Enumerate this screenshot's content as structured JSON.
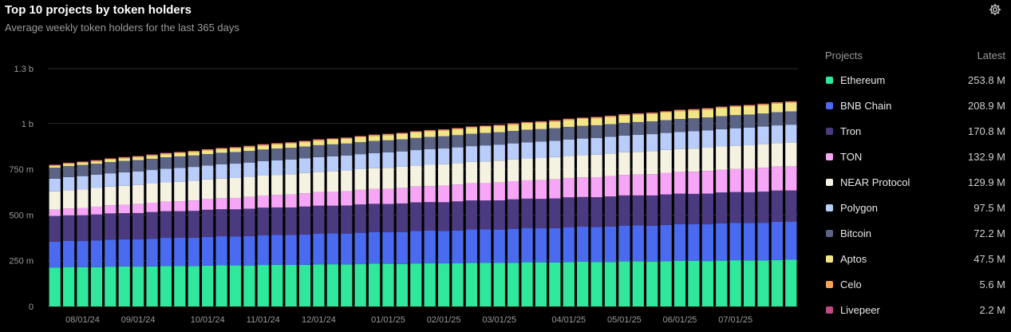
{
  "header": {
    "title": "Top 10 projects by token holders",
    "subtitle": "Average weekly token holders for the last 365 days",
    "settings_icon": "gear-icon"
  },
  "legend": {
    "col_project": "Projects",
    "col_latest": "Latest",
    "items": [
      {
        "label": "Ethereum",
        "value": "253.8 M",
        "color": "#2fe89c"
      },
      {
        "label": "BNB Chain",
        "value": "208.9 M",
        "color": "#4a6bf0"
      },
      {
        "label": "Tron",
        "value": "170.8 M",
        "color": "#4c3a80"
      },
      {
        "label": "TON",
        "value": "132.9 M",
        "color": "#f7a6f7"
      },
      {
        "label": "NEAR Protocol",
        "value": "129.9 M",
        "color": "#f5f2e2"
      },
      {
        "label": "Polygon",
        "value": "97.5 M",
        "color": "#b9cdfb"
      },
      {
        "label": "Bitcoin",
        "value": "72.2 M",
        "color": "#5b6484"
      },
      {
        "label": "Aptos",
        "value": "47.5 M",
        "color": "#f3e487"
      },
      {
        "label": "Celo",
        "value": "5.6 M",
        "color": "#f2a458"
      },
      {
        "label": "Livepeer",
        "value": "2.2 M",
        "color": "#c04a86"
      }
    ]
  },
  "chart_data": {
    "type": "bar",
    "stacked": true,
    "title": "Top 10 projects by token holders",
    "subtitle": "Average weekly token holders for the last 365 days",
    "weeks": 54,
    "x_tick_labels": [
      "08/01/24",
      "09/01/24",
      "10/01/24",
      "11/01/24",
      "12/01/24",
      "01/01/25",
      "02/01/25",
      "03/01/25",
      "04/01/25",
      "05/01/25",
      "06/01/25",
      "07/01/25"
    ],
    "x_tick_week_index": [
      2,
      6,
      11,
      15,
      19,
      24,
      28,
      32,
      37,
      41,
      45,
      49
    ],
    "y_ticks": [
      0,
      250000000,
      500000000,
      750000000,
      1000000000,
      1300000000
    ],
    "y_tick_labels": [
      "0",
      "250 m",
      "500 m",
      "750 m",
      "1 b",
      "1.3 b"
    ],
    "ylim": [
      0,
      1300000000
    ],
    "grid": true,
    "legend_position": "right",
    "series": [
      {
        "name": "Ethereum",
        "start": 213000000,
        "end": 253800000
      },
      {
        "name": "BNB Chain",
        "start": 140000000,
        "end": 208900000
      },
      {
        "name": "Tron",
        "start": 140000000,
        "end": 170800000
      },
      {
        "name": "TON",
        "start": 35000000,
        "end": 132900000
      },
      {
        "name": "NEAR Protocol",
        "start": 100000000,
        "end": 129900000
      },
      {
        "name": "Polygon",
        "start": 70000000,
        "end": 97500000
      },
      {
        "name": "Bitcoin",
        "start": 60000000,
        "end": 72200000
      },
      {
        "name": "Aptos",
        "start": 10000000,
        "end": 47500000
      },
      {
        "name": "Celo",
        "start": 5000000,
        "end": 5600000
      },
      {
        "name": "Livepeer",
        "start": 2000000,
        "end": 2200000
      }
    ]
  }
}
